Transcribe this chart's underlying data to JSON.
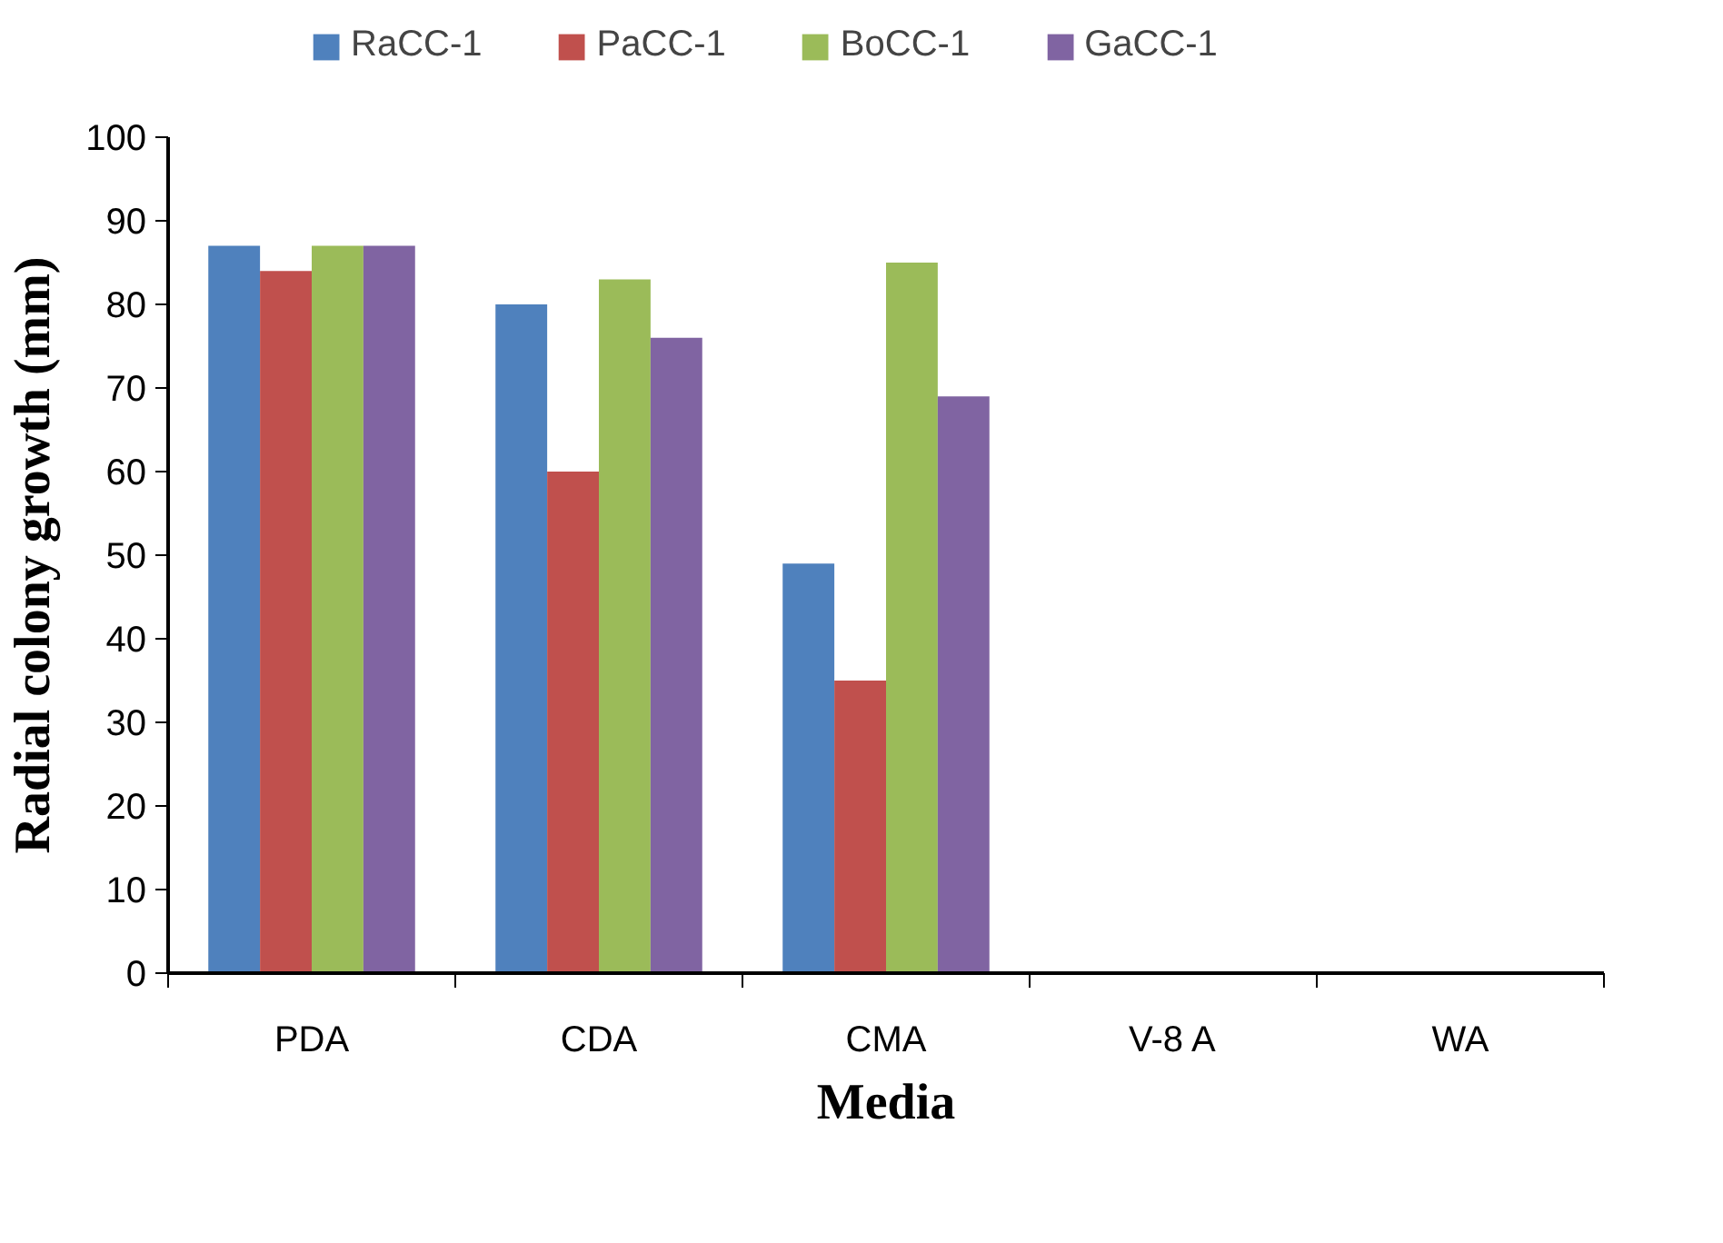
{
  "chart_data": {
    "type": "bar",
    "categories": [
      "PDA",
      "CDA",
      "CMA",
      "V-8 A",
      "WA"
    ],
    "xlabel": "Media",
    "ylabel": "Radial colony growth (mm)",
    "ylim": [
      0,
      100
    ],
    "yticks": [
      0,
      10,
      20,
      30,
      40,
      50,
      60,
      70,
      80,
      90,
      100
    ],
    "grid": false,
    "legend": "top",
    "series": [
      {
        "name": "RaCC-1",
        "color": "#4f81bd",
        "values": [
          87,
          80,
          49,
          0,
          0
        ]
      },
      {
        "name": "PaCC-1",
        "color": "#c0504d",
        "values": [
          84,
          60,
          35,
          0,
          0
        ]
      },
      {
        "name": "BoCC-1",
        "color": "#9bbb59",
        "values": [
          87,
          83,
          85,
          0,
          0
        ]
      },
      {
        "name": "GaCC-1",
        "color": "#8064a2",
        "values": [
          87,
          76,
          69,
          0,
          0
        ]
      }
    ]
  }
}
